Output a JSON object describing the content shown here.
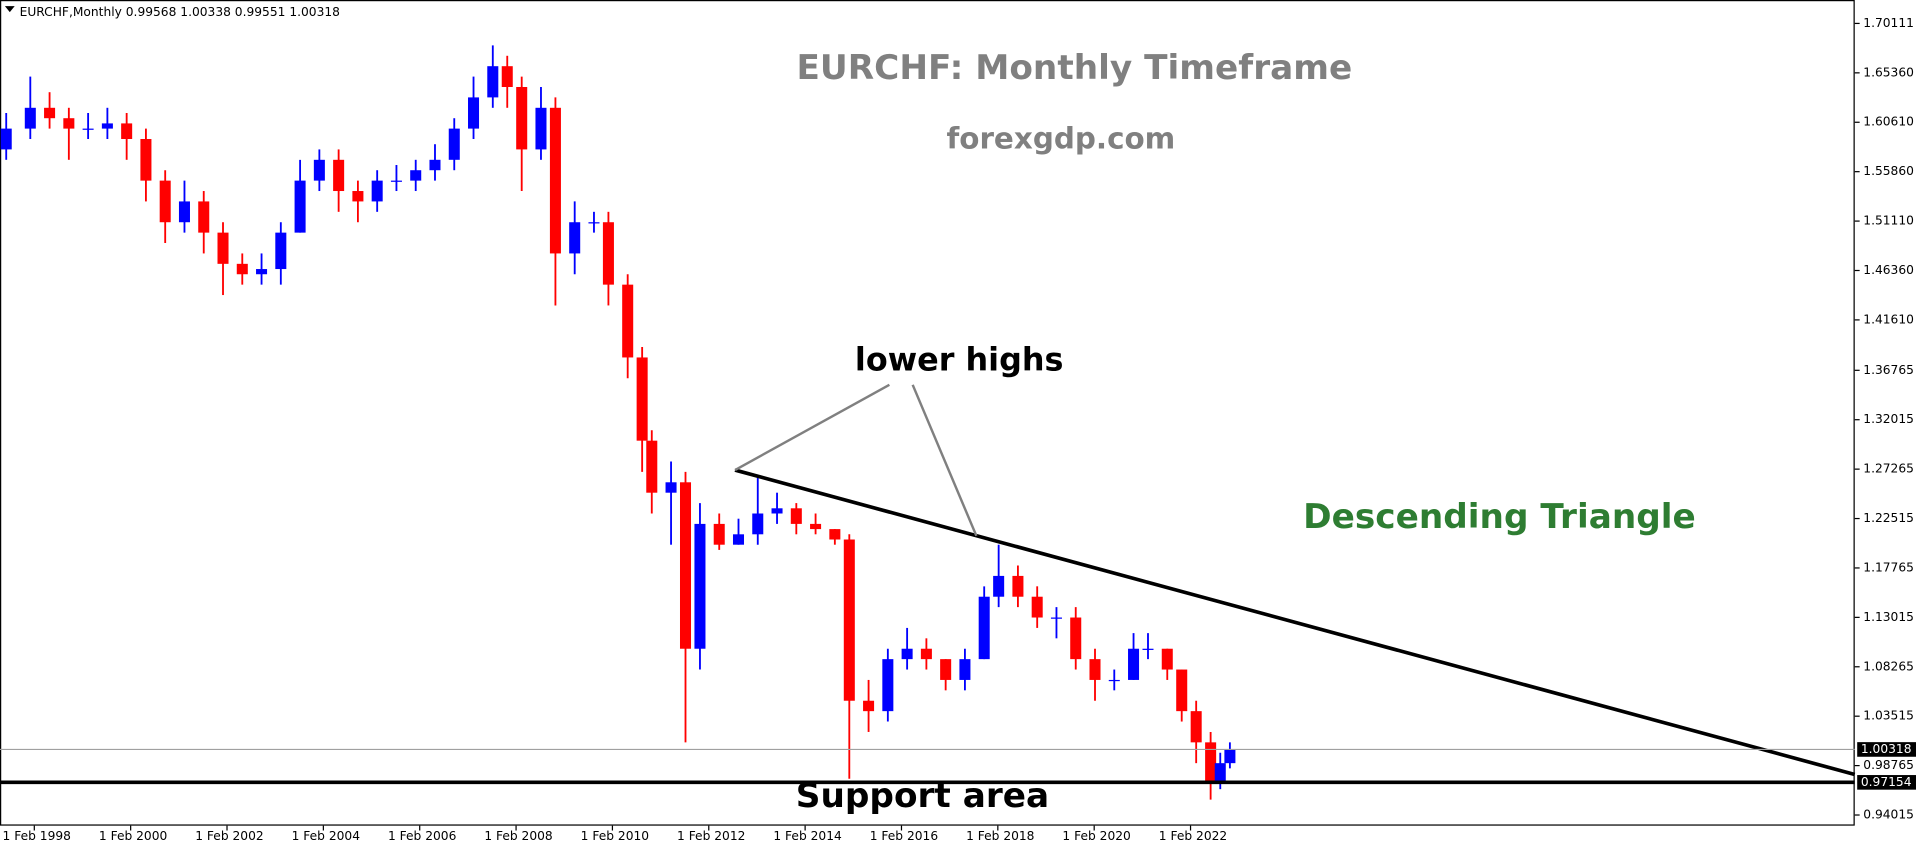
{
  "chart_data": {
    "type": "candlestick",
    "symbol": "EURCHF,Monthly",
    "header_ohlc": [
      0.99568,
      1.00338,
      0.99551,
      1.00318
    ],
    "title": "EURCHF: Monthly Timeframe",
    "subtitle": "forexgdp.com",
    "annotations": [
      "lower highs",
      "Descending Triangle",
      "Support area"
    ],
    "up_color": "#0000ff",
    "down_color": "#ff0000",
    "current_price": 1.00318,
    "support_level": 0.97154,
    "xlim": [
      1997.371,
      2035.87
    ],
    "xticks": [
      {
        "value": 1998.083,
        "label": "1 Feb 1998"
      },
      {
        "value": 2000.083,
        "label": "1 Feb 2000"
      },
      {
        "value": 2002.083,
        "label": "1 Feb 2002"
      },
      {
        "value": 2004.083,
        "label": "1 Feb 2004"
      },
      {
        "value": 2006.083,
        "label": "1 Feb 2006"
      },
      {
        "value": 2008.083,
        "label": "1 Feb 2008"
      },
      {
        "value": 2010.083,
        "label": "1 Feb 2010"
      },
      {
        "value": 2012.083,
        "label": "1 Feb 2012"
      },
      {
        "value": 2014.083,
        "label": "1 Feb 2014"
      },
      {
        "value": 2016.083,
        "label": "1 Feb 2016"
      },
      {
        "value": 2018.083,
        "label": "1 Feb 2018"
      },
      {
        "value": 2020.083,
        "label": "1 Feb 2020"
      },
      {
        "value": 2022.083,
        "label": "1 Feb 2022"
      }
    ],
    "ylim": [
      0.92993,
      1.72363
    ],
    "yticks": [
      1.70111,
      {
        "value": 1.6536,
        "label": "1.65360"
      },
      {
        "value": 1.6061,
        "label": "1.60610"
      },
      {
        "value": 1.5586,
        "label": "1.55860"
      },
      {
        "value": 1.5111,
        "label": "1.51110"
      },
      {
        "value": 1.4636,
        "label": "1.46360"
      },
      {
        "value": 1.4161,
        "label": "1.41610"
      },
      1.36765,
      1.32015,
      1.27265,
      1.22515,
      1.17765,
      1.13015,
      1.08265,
      1.03515,
      0.98765,
      0.94015
    ],
    "x": [
      1997.5,
      1998.0,
      1998.4,
      1998.8,
      1999.2,
      1999.6,
      2000.0,
      2000.4,
      2000.8,
      2001.2,
      2001.6,
      2002.0,
      2002.4,
      2002.8,
      2003.2,
      2003.6,
      2004.0,
      2004.4,
      2004.8,
      2005.2,
      2005.6,
      2006.0,
      2006.4,
      2006.8,
      2007.2,
      2007.6,
      2007.9,
      2008.2,
      2008.6,
      2008.9,
      2009.3,
      2009.7,
      2010.0,
      2010.4,
      2010.7,
      2010.9,
      2011.3,
      2011.6,
      2011.9,
      2012.3,
      2012.7,
      2013.1,
      2013.5,
      2013.9,
      2014.3,
      2014.7,
      2015.0,
      2015.4,
      2015.8,
      2016.2,
      2016.6,
      2017.0,
      2017.4,
      2017.8,
      2018.1,
      2018.5,
      2018.9,
      2019.3,
      2019.7,
      2020.1,
      2020.5,
      2020.9,
      2021.2,
      2021.6,
      2021.9,
      2022.2,
      2022.5,
      2022.7,
      2022.9
    ],
    "open": [
      1.58,
      1.6,
      1.62,
      1.61,
      1.6,
      1.6,
      1.605,
      1.59,
      1.55,
      1.51,
      1.53,
      1.5,
      1.47,
      1.46,
      1.465,
      1.5,
      1.55,
      1.57,
      1.54,
      1.53,
      1.55,
      1.55,
      1.56,
      1.57,
      1.6,
      1.63,
      1.66,
      1.64,
      1.58,
      1.62,
      1.48,
      1.51,
      1.51,
      1.45,
      1.38,
      1.3,
      1.25,
      1.26,
      1.1,
      1.22,
      1.2,
      1.21,
      1.23,
      1.235,
      1.22,
      1.215,
      1.205,
      1.05,
      1.04,
      1.09,
      1.1,
      1.09,
      1.07,
      1.09,
      1.15,
      1.17,
      1.15,
      1.13,
      1.13,
      1.09,
      1.07,
      1.07,
      1.1,
      1.1,
      1.08,
      1.04,
      1.01,
      0.97,
      0.99
    ],
    "high": [
      1.615,
      1.65,
      1.635,
      1.62,
      1.615,
      1.62,
      1.615,
      1.6,
      1.56,
      1.55,
      1.54,
      1.51,
      1.48,
      1.48,
      1.51,
      1.57,
      1.58,
      1.58,
      1.55,
      1.56,
      1.565,
      1.57,
      1.585,
      1.61,
      1.65,
      1.68,
      1.67,
      1.65,
      1.64,
      1.63,
      1.53,
      1.52,
      1.52,
      1.46,
      1.39,
      1.31,
      1.28,
      1.27,
      1.24,
      1.23,
      1.225,
      1.265,
      1.25,
      1.24,
      1.23,
      1.215,
      1.21,
      1.07,
      1.1,
      1.12,
      1.11,
      1.09,
      1.1,
      1.16,
      1.2,
      1.18,
      1.16,
      1.14,
      1.14,
      1.1,
      1.08,
      1.115,
      1.115,
      1.1,
      1.08,
      1.05,
      1.02,
      1.0,
      1.01
    ],
    "low": [
      1.57,
      1.59,
      1.6,
      1.57,
      1.59,
      1.59,
      1.57,
      1.53,
      1.49,
      1.5,
      1.48,
      1.44,
      1.45,
      1.45,
      1.45,
      1.5,
      1.54,
      1.52,
      1.51,
      1.52,
      1.54,
      1.54,
      1.55,
      1.56,
      1.59,
      1.62,
      1.62,
      1.54,
      1.57,
      1.43,
      1.46,
      1.5,
      1.43,
      1.36,
      1.27,
      1.23,
      1.2,
      1.01,
      1.08,
      1.195,
      1.2,
      1.2,
      1.22,
      1.21,
      1.21,
      1.2,
      0.975,
      1.02,
      1.03,
      1.08,
      1.08,
      1.06,
      1.06,
      1.09,
      1.14,
      1.14,
      1.12,
      1.11,
      1.08,
      1.05,
      1.06,
      1.07,
      1.09,
      1.07,
      1.03,
      0.99,
      0.955,
      0.965,
      0.985
    ],
    "close": [
      1.6,
      1.62,
      1.61,
      1.6,
      1.6,
      1.605,
      1.59,
      1.55,
      1.51,
      1.53,
      1.5,
      1.47,
      1.46,
      1.465,
      1.5,
      1.55,
      1.57,
      1.54,
      1.53,
      1.55,
      1.55,
      1.56,
      1.57,
      1.6,
      1.63,
      1.66,
      1.64,
      1.58,
      1.62,
      1.48,
      1.51,
      1.51,
      1.45,
      1.38,
      1.3,
      1.25,
      1.26,
      1.1,
      1.22,
      1.2,
      1.21,
      1.23,
      1.235,
      1.22,
      1.215,
      1.205,
      1.05,
      1.04,
      1.09,
      1.1,
      1.09,
      1.07,
      1.09,
      1.15,
      1.17,
      1.15,
      1.13,
      1.13,
      1.09,
      1.07,
      1.07,
      1.1,
      1.1,
      1.08,
      1.04,
      1.01,
      0.97,
      0.99,
      1.00318
    ]
  }
}
